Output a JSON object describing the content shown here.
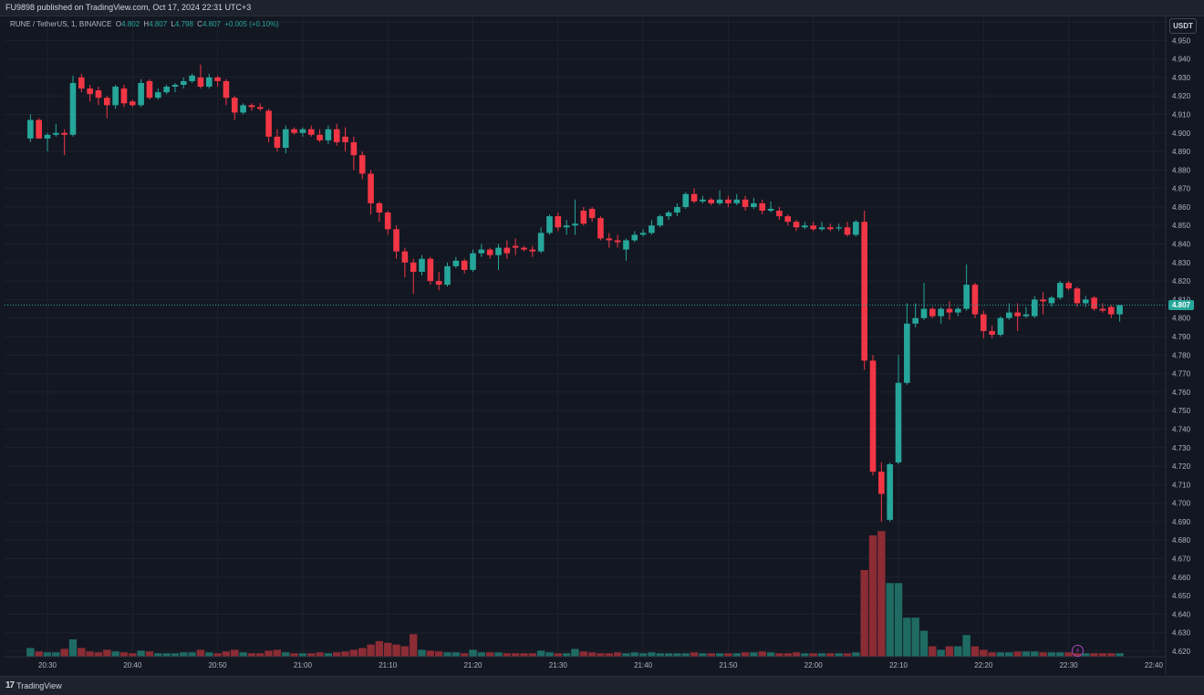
{
  "header": {
    "published_by": "FU9898 published on TradingView.com, Oct 17, 2024 22:31 UTC+3"
  },
  "legend": {
    "symbol": "RUNE / TetherUS, 1, BINANCE",
    "open_label": "O",
    "open": "4.802",
    "high_label": "H",
    "high": "4.807",
    "low_label": "L",
    "low": "4.798",
    "close_label": "C",
    "close": "4.807",
    "change": "+0.005 (+0.10%)"
  },
  "price_scale": {
    "currency": "USDT",
    "last_price": "4.807"
  },
  "footer": {
    "brand": "TradingView",
    "logo_icon": "tradingview-logo-icon",
    "flash_icon": "lightning-icon"
  },
  "colors": {
    "up": "#26a69a",
    "down": "#f23645",
    "vol_up": "#1f6b64",
    "vol_down": "#8c2c34",
    "grid": "#1e222d",
    "background": "#131722"
  },
  "chart_data": {
    "type": "candlestick",
    "ylim": [
      4.615,
      4.965
    ],
    "y_ticks": [
      "4.960",
      "4.950",
      "4.940",
      "4.930",
      "4.920",
      "4.910",
      "4.900",
      "4.890",
      "4.880",
      "4.870",
      "4.860",
      "4.850",
      "4.840",
      "4.830",
      "4.820",
      "4.810",
      "4.800",
      "4.790",
      "4.780",
      "4.770",
      "4.760",
      "4.750",
      "4.740",
      "4.730",
      "4.720",
      "4.710",
      "4.700",
      "4.690",
      "4.680",
      "4.670",
      "4.660",
      "4.650",
      "4.640",
      "4.630",
      "4.620"
    ],
    "x_ticks": [
      {
        "label": "20:30",
        "minute": 0
      },
      {
        "label": "20:40",
        "minute": 10
      },
      {
        "label": "20:50",
        "minute": 20
      },
      {
        "label": "21:00",
        "minute": 30
      },
      {
        "label": "21:10",
        "minute": 40
      },
      {
        "label": "21:20",
        "minute": 50
      },
      {
        "label": "21:30",
        "minute": 60
      },
      {
        "label": "21:40",
        "minute": 70
      },
      {
        "label": "21:50",
        "minute": 80
      },
      {
        "label": "22:00",
        "minute": 90
      },
      {
        "label": "22:10",
        "minute": 100
      },
      {
        "label": "22:20",
        "minute": 110
      },
      {
        "label": "22:30",
        "minute": 120
      },
      {
        "label": "22:40",
        "minute": 130
      }
    ],
    "candles": [
      {
        "minute": -2,
        "o": 4.897,
        "h": 4.91,
        "l": 4.895,
        "c": 4.907,
        "v": 10
      },
      {
        "minute": -1,
        "o": 4.907,
        "h": 4.908,
        "l": 4.897,
        "c": 4.897,
        "v": 6
      },
      {
        "minute": 0,
        "o": 4.897,
        "h": 4.9,
        "l": 4.89,
        "c": 4.899,
        "v": 5
      },
      {
        "minute": 1,
        "o": 4.899,
        "h": 4.905,
        "l": 4.898,
        "c": 4.9,
        "v": 5
      },
      {
        "minute": 2,
        "o": 4.9,
        "h": 4.902,
        "l": 4.888,
        "c": 4.899,
        "v": 9
      },
      {
        "minute": 3,
        "o": 4.899,
        "h": 4.931,
        "l": 4.898,
        "c": 4.927,
        "v": 20
      },
      {
        "minute": 4,
        "o": 4.93,
        "h": 4.932,
        "l": 4.922,
        "c": 4.924,
        "v": 10
      },
      {
        "minute": 5,
        "o": 4.924,
        "h": 4.926,
        "l": 4.917,
        "c": 4.921,
        "v": 6
      },
      {
        "minute": 6,
        "o": 4.923,
        "h": 4.925,
        "l": 4.915,
        "c": 4.919,
        "v": 5
      },
      {
        "minute": 7,
        "o": 4.919,
        "h": 4.92,
        "l": 4.908,
        "c": 4.915,
        "v": 8
      },
      {
        "minute": 8,
        "o": 4.915,
        "h": 4.926,
        "l": 4.913,
        "c": 4.925,
        "v": 6
      },
      {
        "minute": 9,
        "o": 4.924,
        "h": 4.926,
        "l": 4.914,
        "c": 4.916,
        "v": 5
      },
      {
        "minute": 10,
        "o": 4.917,
        "h": 4.918,
        "l": 4.914,
        "c": 4.915,
        "v": 4
      },
      {
        "minute": 11,
        "o": 4.915,
        "h": 4.929,
        "l": 4.914,
        "c": 4.927,
        "v": 7
      },
      {
        "minute": 12,
        "o": 4.928,
        "h": 4.929,
        "l": 4.918,
        "c": 4.919,
        "v": 6
      },
      {
        "minute": 13,
        "o": 4.919,
        "h": 4.924,
        "l": 4.918,
        "c": 4.922,
        "v": 4
      },
      {
        "minute": 14,
        "o": 4.922,
        "h": 4.926,
        "l": 4.921,
        "c": 4.925,
        "v": 4
      },
      {
        "minute": 15,
        "o": 4.925,
        "h": 4.927,
        "l": 4.922,
        "c": 4.926,
        "v": 4
      },
      {
        "minute": 16,
        "o": 4.926,
        "h": 4.93,
        "l": 4.924,
        "c": 4.928,
        "v": 5
      },
      {
        "minute": 17,
        "o": 4.928,
        "h": 4.932,
        "l": 4.927,
        "c": 4.931,
        "v": 5
      },
      {
        "minute": 18,
        "o": 4.93,
        "h": 4.937,
        "l": 4.924,
        "c": 4.925,
        "v": 8
      },
      {
        "minute": 19,
        "o": 4.925,
        "h": 4.932,
        "l": 4.924,
        "c": 4.93,
        "v": 5
      },
      {
        "minute": 20,
        "o": 4.93,
        "h": 4.931,
        "l": 4.925,
        "c": 4.928,
        "v": 4
      },
      {
        "minute": 21,
        "o": 4.928,
        "h": 4.929,
        "l": 4.915,
        "c": 4.919,
        "v": 6
      },
      {
        "minute": 22,
        "o": 4.919,
        "h": 4.92,
        "l": 4.907,
        "c": 4.911,
        "v": 8
      },
      {
        "minute": 23,
        "o": 4.911,
        "h": 4.916,
        "l": 4.91,
        "c": 4.915,
        "v": 5
      },
      {
        "minute": 24,
        "o": 4.915,
        "h": 4.916,
        "l": 4.912,
        "c": 4.914,
        "v": 4
      },
      {
        "minute": 25,
        "o": 4.914,
        "h": 4.916,
        "l": 4.912,
        "c": 4.913,
        "v": 4
      },
      {
        "minute": 26,
        "o": 4.912,
        "h": 4.913,
        "l": 4.895,
        "c": 4.898,
        "v": 7
      },
      {
        "minute": 27,
        "o": 4.898,
        "h": 4.902,
        "l": 4.89,
        "c": 4.892,
        "v": 8
      },
      {
        "minute": 28,
        "o": 4.892,
        "h": 4.904,
        "l": 4.889,
        "c": 4.902,
        "v": 5
      },
      {
        "minute": 29,
        "o": 4.902,
        "h": 4.903,
        "l": 4.899,
        "c": 4.9,
        "v": 4
      },
      {
        "minute": 30,
        "o": 4.9,
        "h": 4.903,
        "l": 4.898,
        "c": 4.902,
        "v": 4
      },
      {
        "minute": 31,
        "o": 4.902,
        "h": 4.904,
        "l": 4.898,
        "c": 4.899,
        "v": 4
      },
      {
        "minute": 32,
        "o": 4.899,
        "h": 4.902,
        "l": 4.895,
        "c": 4.896,
        "v": 5
      },
      {
        "minute": 33,
        "o": 4.896,
        "h": 4.904,
        "l": 4.894,
        "c": 4.902,
        "v": 4
      },
      {
        "minute": 34,
        "o": 4.902,
        "h": 4.905,
        "l": 4.893,
        "c": 4.895,
        "v": 5
      },
      {
        "minute": 35,
        "o": 4.898,
        "h": 4.903,
        "l": 4.89,
        "c": 4.895,
        "v": 6
      },
      {
        "minute": 36,
        "o": 4.895,
        "h": 4.898,
        "l": 4.88,
        "c": 4.888,
        "v": 8
      },
      {
        "minute": 37,
        "o": 4.888,
        "h": 4.89,
        "l": 4.875,
        "c": 4.878,
        "v": 10
      },
      {
        "minute": 38,
        "o": 4.878,
        "h": 4.88,
        "l": 4.856,
        "c": 4.862,
        "v": 14
      },
      {
        "minute": 39,
        "o": 4.862,
        "h": 4.863,
        "l": 4.852,
        "c": 4.857,
        "v": 18
      },
      {
        "minute": 40,
        "o": 4.857,
        "h": 4.858,
        "l": 4.845,
        "c": 4.848,
        "v": 16
      },
      {
        "minute": 41,
        "o": 4.848,
        "h": 4.85,
        "l": 4.832,
        "c": 4.836,
        "v": 14
      },
      {
        "minute": 42,
        "o": 4.836,
        "h": 4.838,
        "l": 4.822,
        "c": 4.83,
        "v": 12
      },
      {
        "minute": 43,
        "o": 4.83,
        "h": 4.832,
        "l": 4.813,
        "c": 4.825,
        "v": 26
      },
      {
        "minute": 44,
        "o": 4.825,
        "h": 4.834,
        "l": 4.823,
        "c": 4.832,
        "v": 8
      },
      {
        "minute": 45,
        "o": 4.832,
        "h": 4.833,
        "l": 4.818,
        "c": 4.82,
        "v": 7
      },
      {
        "minute": 46,
        "o": 4.82,
        "h": 4.825,
        "l": 4.815,
        "c": 4.818,
        "v": 6
      },
      {
        "minute": 47,
        "o": 4.818,
        "h": 4.83,
        "l": 4.817,
        "c": 4.828,
        "v": 5
      },
      {
        "minute": 48,
        "o": 4.828,
        "h": 4.833,
        "l": 4.827,
        "c": 4.831,
        "v": 5
      },
      {
        "minute": 49,
        "o": 4.831,
        "h": 4.832,
        "l": 4.824,
        "c": 4.826,
        "v": 4
      },
      {
        "minute": 50,
        "o": 4.826,
        "h": 4.837,
        "l": 4.825,
        "c": 4.835,
        "v": 8
      },
      {
        "minute": 51,
        "o": 4.835,
        "h": 4.84,
        "l": 4.833,
        "c": 4.837,
        "v": 5
      },
      {
        "minute": 52,
        "o": 4.837,
        "h": 4.838,
        "l": 4.832,
        "c": 4.834,
        "v": 5
      },
      {
        "minute": 53,
        "o": 4.834,
        "h": 4.84,
        "l": 4.826,
        "c": 4.838,
        "v": 5
      },
      {
        "minute": 54,
        "o": 4.838,
        "h": 4.842,
        "l": 4.832,
        "c": 4.835,
        "v": 4
      },
      {
        "minute": 55,
        "o": 4.839,
        "h": 4.843,
        "l": 4.834,
        "c": 4.838,
        "v": 4
      },
      {
        "minute": 56,
        "o": 4.838,
        "h": 4.839,
        "l": 4.836,
        "c": 4.837,
        "v": 4
      },
      {
        "minute": 57,
        "o": 4.837,
        "h": 4.839,
        "l": 4.833,
        "c": 4.836,
        "v": 4
      },
      {
        "minute": 58,
        "o": 4.836,
        "h": 4.849,
        "l": 4.835,
        "c": 4.846,
        "v": 7
      },
      {
        "minute": 59,
        "o": 4.846,
        "h": 4.856,
        "l": 4.845,
        "c": 4.855,
        "v": 5
      },
      {
        "minute": 60,
        "o": 4.855,
        "h": 4.857,
        "l": 4.847,
        "c": 4.849,
        "v": 4
      },
      {
        "minute": 61,
        "o": 4.849,
        "h": 4.853,
        "l": 4.845,
        "c": 4.85,
        "v": 4
      },
      {
        "minute": 62,
        "o": 4.85,
        "h": 4.864,
        "l": 4.845,
        "c": 4.851,
        "v": 9
      },
      {
        "minute": 63,
        "o": 4.858,
        "h": 4.86,
        "l": 4.85,
        "c": 4.851,
        "v": 6
      },
      {
        "minute": 64,
        "o": 4.859,
        "h": 4.86,
        "l": 4.852,
        "c": 4.854,
        "v": 5
      },
      {
        "minute": 65,
        "o": 4.854,
        "h": 4.855,
        "l": 4.842,
        "c": 4.843,
        "v": 4
      },
      {
        "minute": 66,
        "o": 4.843,
        "h": 4.846,
        "l": 4.838,
        "c": 4.842,
        "v": 4
      },
      {
        "minute": 67,
        "o": 4.842,
        "h": 4.845,
        "l": 4.838,
        "c": 4.841,
        "v": 5
      },
      {
        "minute": 68,
        "o": 4.837,
        "h": 4.843,
        "l": 4.831,
        "c": 4.842,
        "v": 4
      },
      {
        "minute": 69,
        "o": 4.842,
        "h": 4.847,
        "l": 4.841,
        "c": 4.845,
        "v": 5
      },
      {
        "minute": 70,
        "o": 4.845,
        "h": 4.848,
        "l": 4.844,
        "c": 4.846,
        "v": 4
      },
      {
        "minute": 71,
        "o": 4.846,
        "h": 4.853,
        "l": 4.845,
        "c": 4.85,
        "v": 5
      },
      {
        "minute": 72,
        "o": 4.85,
        "h": 4.856,
        "l": 4.849,
        "c": 4.855,
        "v": 4
      },
      {
        "minute": 73,
        "o": 4.855,
        "h": 4.858,
        "l": 4.853,
        "c": 4.857,
        "v": 4
      },
      {
        "minute": 74,
        "o": 4.857,
        "h": 4.862,
        "l": 4.855,
        "c": 4.86,
        "v": 4
      },
      {
        "minute": 75,
        "o": 4.86,
        "h": 4.868,
        "l": 4.859,
        "c": 4.867,
        "v": 4
      },
      {
        "minute": 76,
        "o": 4.867,
        "h": 4.87,
        "l": 4.862,
        "c": 4.863,
        "v": 5
      },
      {
        "minute": 77,
        "o": 4.863,
        "h": 4.866,
        "l": 4.862,
        "c": 4.864,
        "v": 4
      },
      {
        "minute": 78,
        "o": 4.864,
        "h": 4.865,
        "l": 4.861,
        "c": 4.862,
        "v": 4
      },
      {
        "minute": 79,
        "o": 4.862,
        "h": 4.869,
        "l": 4.861,
        "c": 4.864,
        "v": 4
      },
      {
        "minute": 80,
        "o": 4.864,
        "h": 4.866,
        "l": 4.86,
        "c": 4.862,
        "v": 4
      },
      {
        "minute": 81,
        "o": 4.862,
        "h": 4.867,
        "l": 4.861,
        "c": 4.864,
        "v": 4
      },
      {
        "minute": 82,
        "o": 4.864,
        "h": 4.866,
        "l": 4.858,
        "c": 4.86,
        "v": 5
      },
      {
        "minute": 83,
        "o": 4.86,
        "h": 4.865,
        "l": 4.859,
        "c": 4.862,
        "v": 5
      },
      {
        "minute": 84,
        "o": 4.862,
        "h": 4.864,
        "l": 4.856,
        "c": 4.858,
        "v": 6
      },
      {
        "minute": 85,
        "o": 4.858,
        "h": 4.863,
        "l": 4.857,
        "c": 4.859,
        "v": 5
      },
      {
        "minute": 86,
        "o": 4.858,
        "h": 4.86,
        "l": 4.853,
        "c": 4.855,
        "v": 4
      },
      {
        "minute": 87,
        "o": 4.855,
        "h": 4.856,
        "l": 4.85,
        "c": 4.852,
        "v": 4
      },
      {
        "minute": 88,
        "o": 4.852,
        "h": 4.853,
        "l": 4.847,
        "c": 4.849,
        "v": 5
      },
      {
        "minute": 89,
        "o": 4.849,
        "h": 4.852,
        "l": 4.848,
        "c": 4.85,
        "v": 4
      },
      {
        "minute": 90,
        "o": 4.85,
        "h": 4.852,
        "l": 4.847,
        "c": 4.848,
        "v": 4
      },
      {
        "minute": 91,
        "o": 4.848,
        "h": 4.852,
        "l": 4.847,
        "c": 4.849,
        "v": 4
      },
      {
        "minute": 92,
        "o": 4.849,
        "h": 4.851,
        "l": 4.847,
        "c": 4.848,
        "v": 4
      },
      {
        "minute": 93,
        "o": 4.849,
        "h": 4.851,
        "l": 4.847,
        "c": 4.849,
        "v": 4
      },
      {
        "minute": 94,
        "o": 4.849,
        "h": 4.852,
        "l": 4.844,
        "c": 4.845,
        "v": 4
      },
      {
        "minute": 95,
        "o": 4.845,
        "h": 4.853,
        "l": 4.844,
        "c": 4.852,
        "v": 5
      },
      {
        "minute": 96,
        "o": 4.852,
        "h": 4.858,
        "l": 4.772,
        "c": 4.777,
        "v": 100
      },
      {
        "minute": 97,
        "o": 4.777,
        "h": 4.78,
        "l": 4.715,
        "c": 4.717,
        "v": 140
      },
      {
        "minute": 98,
        "o": 4.717,
        "h": 4.722,
        "l": 4.69,
        "c": 4.705,
        "v": 145
      },
      {
        "minute": 99,
        "o": 4.691,
        "h": 4.722,
        "l": 4.69,
        "c": 4.721,
        "v": 85
      },
      {
        "minute": 100,
        "o": 4.722,
        "h": 4.78,
        "l": 4.721,
        "c": 4.765,
        "v": 85
      },
      {
        "minute": 101,
        "o": 4.765,
        "h": 4.808,
        "l": 4.764,
        "c": 4.797,
        "v": 45
      },
      {
        "minute": 102,
        "o": 4.797,
        "h": 4.808,
        "l": 4.795,
        "c": 4.8,
        "v": 45
      },
      {
        "minute": 103,
        "o": 4.8,
        "h": 4.819,
        "l": 4.799,
        "c": 4.805,
        "v": 30
      },
      {
        "minute": 104,
        "o": 4.805,
        "h": 4.806,
        "l": 4.8,
        "c": 4.801,
        "v": 12
      },
      {
        "minute": 105,
        "o": 4.801,
        "h": 4.806,
        "l": 4.797,
        "c": 4.805,
        "v": 8
      },
      {
        "minute": 106,
        "o": 4.805,
        "h": 4.809,
        "l": 4.799,
        "c": 4.803,
        "v": 12
      },
      {
        "minute": 107,
        "o": 4.803,
        "h": 4.806,
        "l": 4.801,
        "c": 4.805,
        "v": 12
      },
      {
        "minute": 108,
        "o": 4.805,
        "h": 4.829,
        "l": 4.804,
        "c": 4.818,
        "v": 25
      },
      {
        "minute": 109,
        "o": 4.818,
        "h": 4.819,
        "l": 4.8,
        "c": 4.802,
        "v": 12
      },
      {
        "minute": 110,
        "o": 4.802,
        "h": 4.804,
        "l": 4.789,
        "c": 4.793,
        "v": 8
      },
      {
        "minute": 111,
        "o": 4.793,
        "h": 4.796,
        "l": 4.789,
        "c": 4.791,
        "v": 5
      },
      {
        "minute": 112,
        "o": 4.791,
        "h": 4.801,
        "l": 4.79,
        "c": 4.8,
        "v": 5
      },
      {
        "minute": 113,
        "o": 4.8,
        "h": 4.808,
        "l": 4.799,
        "c": 4.803,
        "v": 5
      },
      {
        "minute": 114,
        "o": 4.803,
        "h": 4.808,
        "l": 4.793,
        "c": 4.801,
        "v": 6
      },
      {
        "minute": 115,
        "o": 4.801,
        "h": 4.806,
        "l": 4.8,
        "c": 4.802,
        "v": 6
      },
      {
        "minute": 116,
        "o": 4.801,
        "h": 4.812,
        "l": 4.8,
        "c": 4.81,
        "v": 6
      },
      {
        "minute": 117,
        "o": 4.81,
        "h": 4.814,
        "l": 4.802,
        "c": 4.809,
        "v": 5
      },
      {
        "minute": 118,
        "o": 4.808,
        "h": 4.812,
        "l": 4.806,
        "c": 4.811,
        "v": 5
      },
      {
        "minute": 119,
        "o": 4.811,
        "h": 4.82,
        "l": 4.81,
        "c": 4.819,
        "v": 5
      },
      {
        "minute": 120,
        "o": 4.819,
        "h": 4.82,
        "l": 4.815,
        "c": 4.816,
        "v": 5
      },
      {
        "minute": 121,
        "o": 4.816,
        "h": 4.817,
        "l": 4.806,
        "c": 4.808,
        "v": 4
      },
      {
        "minute": 122,
        "o": 4.808,
        "h": 4.812,
        "l": 4.806,
        "c": 4.81,
        "v": 4
      },
      {
        "minute": 123,
        "o": 4.811,
        "h": 4.812,
        "l": 4.804,
        "c": 4.805,
        "v": 4
      },
      {
        "minute": 124,
        "o": 4.805,
        "h": 4.808,
        "l": 4.803,
        "c": 4.804,
        "v": 4
      },
      {
        "minute": 125,
        "o": 4.806,
        "h": 4.807,
        "l": 4.8,
        "c": 4.802,
        "v": 4
      },
      {
        "minute": 126,
        "o": 4.802,
        "h": 4.807,
        "l": 4.798,
        "c": 4.807,
        "v": 4
      }
    ]
  }
}
